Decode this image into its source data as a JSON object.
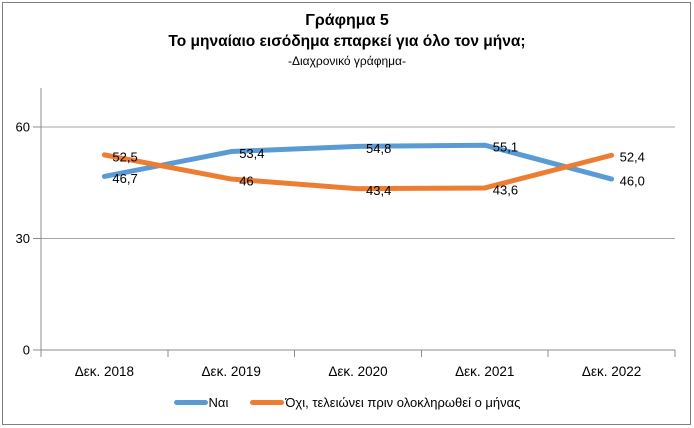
{
  "chart_data": {
    "type": "line",
    "title": "Γράφημα 5",
    "subtitle": "Το μηναίαιο εισόδημα επαρκεί για όλο τον μήνα;",
    "subtitle2": "-Διαχρονικό γράφημα-",
    "categories": [
      "Δεκ. 2018",
      "Δεκ. 2019",
      "Δεκ. 2020",
      "Δεκ. 2021",
      "Δεκ. 2022"
    ],
    "series": [
      {
        "name": "Ναι",
        "color": "#5B9BD5",
        "values": [
          46.7,
          53.4,
          54.8,
          55.1,
          46.0
        ],
        "labels": [
          "46,7",
          "53,4",
          "54,8",
          "55,1",
          "46,0"
        ]
      },
      {
        "name": "Όχι, τελειώνει πριν ολοκληρωθεί ο μήνας",
        "color": "#ED7D31",
        "values": [
          52.5,
          46,
          43.4,
          43.6,
          52.4
        ],
        "labels": [
          "52,5",
          "46",
          "43,4",
          "43,6",
          "52,4"
        ]
      }
    ],
    "yticks": [
      0,
      30,
      60
    ],
    "ylim": [
      0,
      70
    ],
    "grid": "horizontal-major",
    "legend_position": "bottom",
    "line_width": 5
  },
  "colors": {
    "axis": "#8C8C8C",
    "grid": "#A6A6A6",
    "text": "#000000",
    "border": "#808080"
  }
}
